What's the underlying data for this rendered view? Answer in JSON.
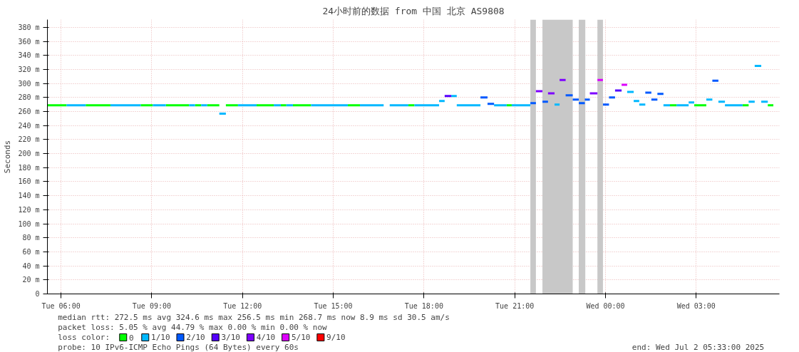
{
  "chart_data": {
    "type": "line",
    "title": "24小时前的数据 from 中国 北京 AS9808",
    "ylabel": "Seconds",
    "legend_title": "loss color:",
    "legend": "bottom",
    "grid": true,
    "line_style": "solid",
    "marker": "none",
    "xlim": [
      "2025-07-01T05:33",
      "2025-07-02T05:45"
    ],
    "ylim": [
      0,
      391
    ],
    "xticks": [
      {
        "value": "2025-07-01T06:00",
        "label": "Tue 06:00"
      },
      {
        "value": "2025-07-01T09:00",
        "label": "Tue 09:00"
      },
      {
        "value": "2025-07-01T12:00",
        "label": "Tue 12:00"
      },
      {
        "value": "2025-07-01T15:00",
        "label": "Tue 15:00"
      },
      {
        "value": "2025-07-01T18:00",
        "label": "Tue 18:00"
      },
      {
        "value": "2025-07-01T21:00",
        "label": "Tue 21:00"
      },
      {
        "value": "2025-07-02T00:00",
        "label": "Wed 00:00"
      },
      {
        "value": "2025-07-02T03:00",
        "label": "Wed 03:00"
      }
    ],
    "yticks": [
      0,
      {
        "value": 20,
        "label": "20 m"
      },
      {
        "value": 40,
        "label": "40 m"
      },
      {
        "value": 60,
        "label": "60 m"
      },
      {
        "value": 80,
        "label": "80 m"
      },
      {
        "value": 100,
        "label": "100 m"
      },
      {
        "value": 120,
        "label": "120 m"
      },
      {
        "value": 140,
        "label": "140 m"
      },
      {
        "value": 160,
        "label": "160 m"
      },
      {
        "value": 180,
        "label": "180 m"
      },
      {
        "value": 200,
        "label": "200 m"
      },
      {
        "value": 220,
        "label": "220 m"
      },
      {
        "value": 240,
        "label": "240 m"
      },
      {
        "value": 260,
        "label": "260 m"
      },
      {
        "value": 280,
        "label": "280 m"
      },
      {
        "value": 300,
        "label": "300 m"
      },
      {
        "value": 320,
        "label": "320 m"
      },
      {
        "value": 340,
        "label": "340 m"
      },
      {
        "value": 360,
        "label": "360 m"
      },
      {
        "value": 380,
        "label": "380 m"
      }
    ],
    "bands": [
      {
        "axis": "x",
        "from": "2025-07-01T21:31",
        "to": "2025-07-01T21:42",
        "color": "#c8c8c8"
      },
      {
        "axis": "x",
        "from": "2025-07-01T21:55",
        "to": "2025-07-01T22:55",
        "color": "#c8c8c8"
      },
      {
        "axis": "x",
        "from": "2025-07-01T23:07",
        "to": "2025-07-01T23:20",
        "color": "#c8c8c8"
      },
      {
        "axis": "x",
        "from": "2025-07-01T23:44",
        "to": "2025-07-01T23:55",
        "color": "#c8c8c8"
      }
    ],
    "series": [
      {
        "name": "0",
        "color": "#00ff00",
        "x": [
          "2025-07-01T05:33",
          "2025-07-01T06:11",
          "2025-07-01T06:49",
          "2025-07-01T07:38",
          "2025-07-01T08:38",
          "2025-07-01T09:02",
          "2025-07-01T09:28",
          "2025-07-01T10:14",
          "2025-07-01T10:26",
          "2025-07-01T10:38",
          "2025-07-01T10:50",
          "2025-07-01T11:14",
          "2025-07-01T11:27",
          "2025-07-01T11:51",
          "2025-07-01T12:28",
          "2025-07-01T13:02",
          "2025-07-01T13:16",
          "2025-07-01T13:27",
          "2025-07-01T13:40",
          "2025-07-01T14:16",
          "2025-07-01T15:29",
          "2025-07-01T15:53",
          "2025-07-01T17:29",
          "2025-07-01T17:41",
          "2025-07-01T20:44",
          "2025-07-01T20:54",
          "2025-07-02T02:08",
          "2025-07-02T02:21",
          "2025-07-02T02:56",
          "2025-07-02T03:20",
          "2025-07-02T04:32",
          "2025-07-02T04:44",
          "2025-07-02T05:22",
          "2025-07-02T05:33"
        ],
        "values": [
          269,
          269,
          269,
          269,
          269,
          269,
          269,
          269,
          269,
          269,
          269,
          269,
          269,
          269,
          269,
          269,
          269,
          269,
          269,
          269,
          269,
          269,
          269,
          269,
          269,
          269,
          269,
          269,
          269,
          269,
          269,
          269,
          269,
          269
        ]
      },
      {
        "name": "1/10",
        "color": "#00b8ff",
        "x": [
          "2025-07-01T06:11",
          "2025-07-01T06:49",
          "2025-07-01T07:38",
          "2025-07-01T08:38",
          "2025-07-01T09:02",
          "2025-07-01T09:28",
          "2025-07-01T10:14",
          "2025-07-01T10:26",
          "2025-07-01T10:38",
          "2025-07-01T10:50",
          "2025-07-01T11:14",
          "2025-07-01T11:27",
          "2025-07-01T11:51",
          "2025-07-01T12:28",
          "2025-07-01T13:02",
          "2025-07-01T13:16",
          "2025-07-01T13:27",
          "2025-07-01T13:40",
          "2025-07-01T14:16",
          "2025-07-01T15:29",
          "2025-07-01T15:53",
          "2025-07-01T16:40",
          "2025-07-01T16:52",
          "2025-07-01T17:29",
          "2025-07-01T17:41",
          "2025-07-01T18:30",
          "2025-07-01T18:30",
          "2025-07-01T18:41",
          "2025-07-01T18:54",
          "2025-07-01T19:05",
          "2025-07-01T19:05",
          "2025-07-01T19:52",
          "2025-07-01T20:19",
          "2025-07-01T20:44",
          "2025-07-01T20:54",
          "2025-07-01T21:31",
          "2025-07-01T22:19",
          "2025-07-01T22:29",
          "2025-07-02T00:43",
          "2025-07-02T00:56",
          "2025-07-02T00:56",
          "2025-07-02T01:07",
          "2025-07-02T01:07",
          "2025-07-02T01:19",
          "2025-07-02T01:55",
          "2025-07-02T02:08",
          "2025-07-02T02:21",
          "2025-07-02T02:45",
          "2025-07-02T02:45",
          "2025-07-02T02:56",
          "2025-07-02T03:20",
          "2025-07-02T03:32",
          "2025-07-02T03:44",
          "2025-07-02T03:57",
          "2025-07-02T03:57",
          "2025-07-02T04:32",
          "2025-07-02T04:44",
          "2025-07-02T04:56",
          "2025-07-02T04:56",
          "2025-07-02T05:09",
          "2025-07-02T05:09",
          "2025-07-02T05:22"
        ],
        "values": [
          269,
          269,
          269,
          269,
          269,
          269,
          269,
          269,
          269,
          269,
          257,
          257,
          269,
          269,
          269,
          269,
          269,
          269,
          269,
          269,
          269,
          269,
          269,
          269,
          269,
          269,
          275,
          275,
          282,
          282,
          269,
          269,
          269,
          269,
          269,
          269,
          270,
          270,
          288,
          288,
          275,
          275,
          270,
          270,
          269,
          269,
          269,
          269,
          273,
          273,
          277,
          277,
          274,
          274,
          269,
          269,
          274,
          274,
          325,
          325,
          274,
          274
        ]
      },
      {
        "name": "2/10",
        "color": "#0059ff",
        "x": [
          "2025-07-01T19:52",
          "2025-07-01T20:06",
          "2025-07-01T20:06",
          "2025-07-01T20:19",
          "2025-07-01T21:31",
          "2025-07-01T21:42",
          "2025-07-01T21:55",
          "2025-07-01T22:06",
          "2025-07-01T22:41",
          "2025-07-01T22:55",
          "2025-07-01T22:55",
          "2025-07-01T23:07",
          "2025-07-01T23:07",
          "2025-07-01T23:19",
          "2025-07-01T23:19",
          "2025-07-01T23:29",
          "2025-07-01T23:55",
          "2025-07-02T00:07",
          "2025-07-02T00:07",
          "2025-07-02T00:19",
          "2025-07-02T01:19",
          "2025-07-02T01:31",
          "2025-07-02T01:31",
          "2025-07-02T01:43",
          "2025-07-02T01:43",
          "2025-07-02T01:55",
          "2025-07-02T03:32",
          "2025-07-02T03:44"
        ],
        "values": [
          280,
          280,
          271,
          271,
          272,
          272,
          274,
          274,
          283,
          283,
          277,
          277,
          272,
          272,
          277,
          277,
          270,
          270,
          280,
          280,
          287,
          287,
          277,
          277,
          285,
          285,
          304,
          304
        ]
      },
      {
        "name": "3/10",
        "color": "#5500ff",
        "x": [
          "2025-07-01T18:41",
          "2025-07-01T18:54",
          "2025-07-02T00:19",
          "2025-07-02T00:32"
        ],
        "values": [
          282,
          282,
          290,
          290
        ]
      },
      {
        "name": "4/10",
        "color": "#7e00ff",
        "x": [
          "2025-07-01T21:42",
          "2025-07-01T21:55",
          "2025-07-01T22:06",
          "2025-07-01T22:19",
          "2025-07-01T22:29",
          "2025-07-01T22:41",
          "2025-07-01T23:29",
          "2025-07-01T23:44"
        ],
        "values": [
          289,
          289,
          286,
          286,
          305,
          305,
          286,
          286
        ]
      },
      {
        "name": "5/10",
        "color": "#dd00ff",
        "x": [
          "2025-07-01T23:44",
          "2025-07-01T23:55",
          "2025-07-02T00:32",
          "2025-07-02T00:43"
        ],
        "values": [
          305,
          305,
          298,
          298
        ]
      },
      {
        "name": "9/10",
        "color": "#ff0000"
      }
    ],
    "annotations": [
      "median rtt:  272.5 ms avg  324.6 ms max  256.5 ms min  268.7 ms now  8.9 ms sd  30.5   am/s",
      "packet loss: 5.05 % avg  44.79 % max  0.00 % min  0.00 % now",
      "probe:       10 IPv6-ICMP Echo Pings (64 Bytes) every 60s",
      "end: Wed Jul  2 05:33:00 2025"
    ]
  }
}
